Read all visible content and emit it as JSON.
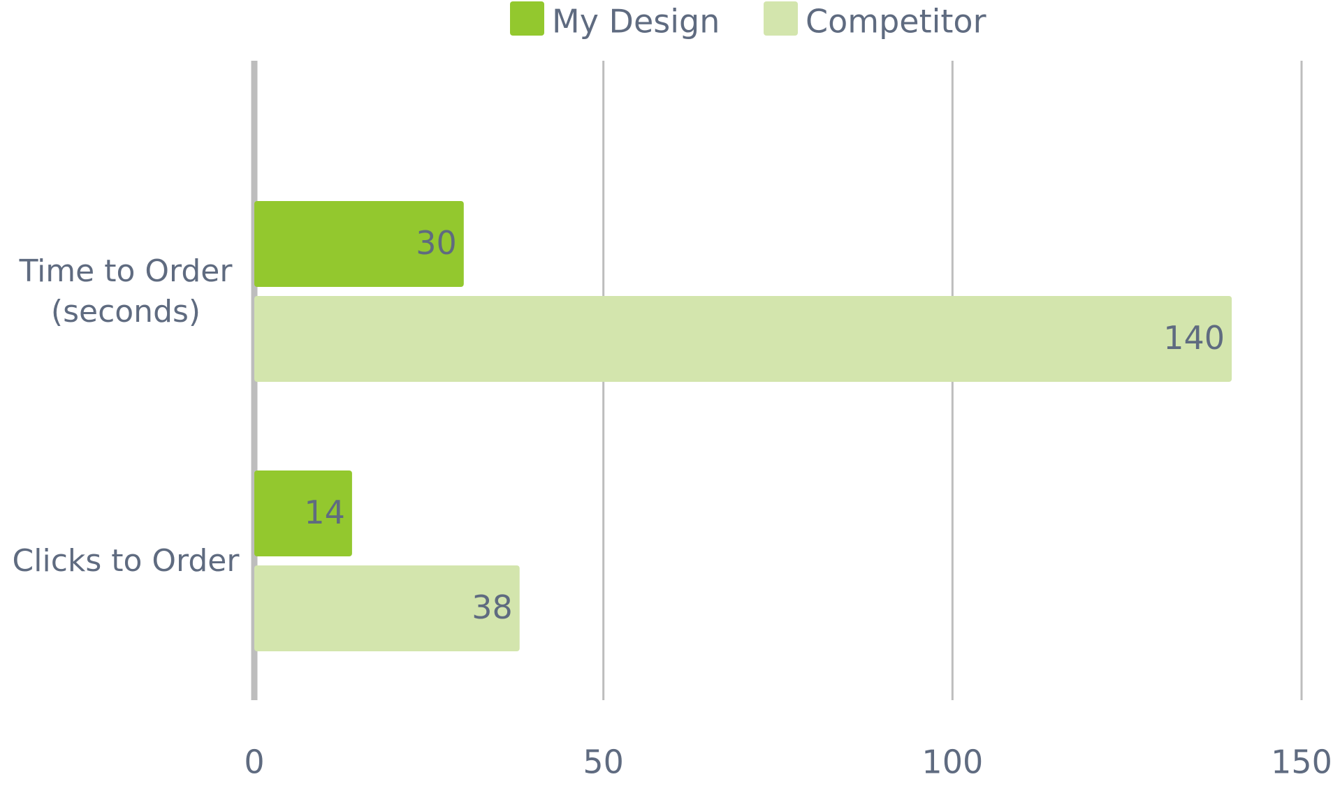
{
  "chart_data": {
    "type": "bar",
    "orientation": "horizontal",
    "categories": [
      "Time to Order (seconds)",
      "Clicks to Order"
    ],
    "series": [
      {
        "name": "My Design",
        "color": "#93c82e",
        "values": [
          30,
          14
        ]
      },
      {
        "name": "Competitor",
        "color": "#d3e5ad",
        "values": [
          140,
          38
        ]
      }
    ],
    "xlim": [
      0,
      150
    ],
    "xticks": [
      0,
      50,
      100,
      150
    ],
    "grid": true,
    "legend": "top"
  }
}
